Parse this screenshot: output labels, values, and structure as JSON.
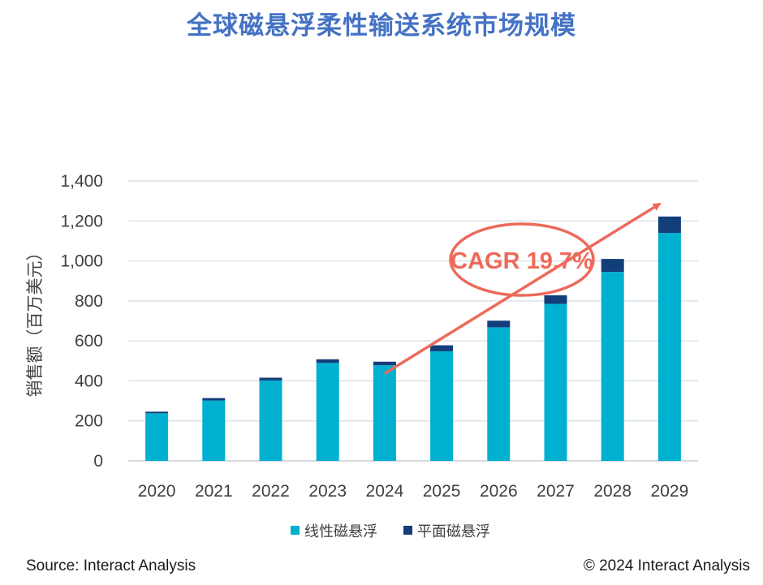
{
  "chart_data": {
    "type": "bar",
    "stacked": true,
    "title": "全球磁悬浮柔性输送系统市场规模",
    "ylabel": "销售额（百万美元）",
    "xlabel": "",
    "ylim": [
      0,
      1400
    ],
    "yticks": [
      0,
      200,
      400,
      600,
      800,
      1000,
      1200,
      1400
    ],
    "ytick_labels": [
      "0",
      "200",
      "400",
      "600",
      "800",
      "1,000",
      "1,200",
      "1,400"
    ],
    "grid": true,
    "categories": [
      "2020",
      "2021",
      "2022",
      "2023",
      "2024",
      "2025",
      "2026",
      "2027",
      "2028",
      "2029"
    ],
    "series": [
      {
        "name": "线性磁悬浮",
        "color": "#00b0d0",
        "values": [
          238,
          302,
          402,
          490,
          478,
          548,
          668,
          785,
          945,
          1140
        ]
      },
      {
        "name": "平面磁悬浮",
        "color": "#123e7a",
        "values": [
          8,
          12,
          14,
          18,
          18,
          30,
          33,
          43,
          65,
          82
        ]
      }
    ],
    "legend_position": "bottom-center",
    "annotation": {
      "text": "CAGR 19.7%",
      "color": "#ed6a5a",
      "arrow_from": {
        "category": "2024",
        "value": 510
      },
      "arrow_to": {
        "category": "2029",
        "value": 1245
      }
    }
  },
  "footer": {
    "source": "Source: Interact Analysis",
    "copyright": "© 2024 Interact Analysis"
  }
}
